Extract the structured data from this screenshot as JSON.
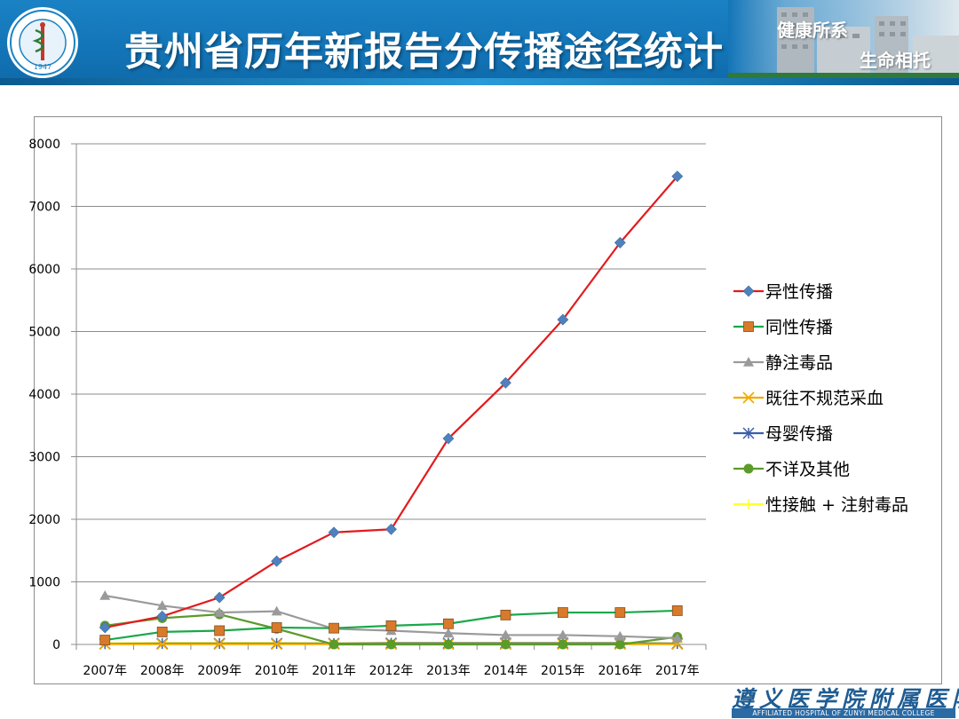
{
  "header": {
    "title": "贵州省历年新报告分传播途径统计",
    "slogan_line1": "健康所系",
    "slogan_line2": "生命相托",
    "logo_year": "1947"
  },
  "footer": {
    "hospital_cn": "遵义医学院附属医院",
    "hospital_en": "AFFILIATED HOSPITAL OF ZUNYI MEDICAL COLLEGE"
  },
  "colors": {
    "header_blue": "#1a82c4",
    "grid": "#8c8c8c"
  },
  "chart_data": {
    "type": "line",
    "title": "",
    "xlabel": "",
    "ylabel": "",
    "categories": [
      "2007年",
      "2008年",
      "2009年",
      "2010年",
      "2011年",
      "2012年",
      "2013年",
      "2014年",
      "2015年",
      "2016年",
      "2017年"
    ],
    "ylim": [
      0,
      8000
    ],
    "yticks": [
      0,
      1000,
      2000,
      3000,
      4000,
      5000,
      6000,
      7000,
      8000
    ],
    "grid": "horizontal",
    "legend_position": "right",
    "series": [
      {
        "name": "异性传播",
        "color": "#e31a1c",
        "marker": "diamond",
        "marker_color": "#4f81bd",
        "values": [
          270,
          450,
          750,
          1330,
          1790,
          1840,
          3290,
          4180,
          5190,
          6420,
          7480
        ]
      },
      {
        "name": "同性传播",
        "color": "#1aa84a",
        "marker": "square",
        "marker_color": "#d97a2b",
        "values": [
          70,
          200,
          220,
          270,
          260,
          300,
          330,
          470,
          510,
          510,
          540
        ]
      },
      {
        "name": "静注毒品",
        "color": "#9a9a9a",
        "marker": "triangle",
        "marker_color": "#9a9a9a",
        "values": [
          780,
          620,
          510,
          530,
          250,
          220,
          180,
          150,
          150,
          130,
          100
        ]
      },
      {
        "name": "既往不规范采血",
        "color": "#f2a900",
        "marker": "x",
        "marker_color": "#f2a900",
        "values": [
          5,
          5,
          5,
          5,
          5,
          5,
          5,
          5,
          5,
          5,
          5
        ]
      },
      {
        "name": "母婴传播",
        "color": "#3a5fa8",
        "marker": "star",
        "marker_color": "#3a5fa8",
        "values": [
          10,
          15,
          15,
          15,
          15,
          20,
          20,
          20,
          20,
          20,
          15
        ]
      },
      {
        "name": "不详及其他",
        "color": "#5b9b2a",
        "marker": "circle",
        "marker_color": "#5b9b2a",
        "values": [
          300,
          420,
          480,
          250,
          0,
          0,
          0,
          0,
          0,
          0,
          120
        ]
      },
      {
        "name": " 性接触 + 注射毒品",
        "color": "#ffff33",
        "marker": "plus",
        "marker_color": "#ffff33",
        "values": [
          20,
          25,
          25,
          25,
          20,
          25,
          25,
          25,
          25,
          25,
          20
        ]
      }
    ]
  }
}
